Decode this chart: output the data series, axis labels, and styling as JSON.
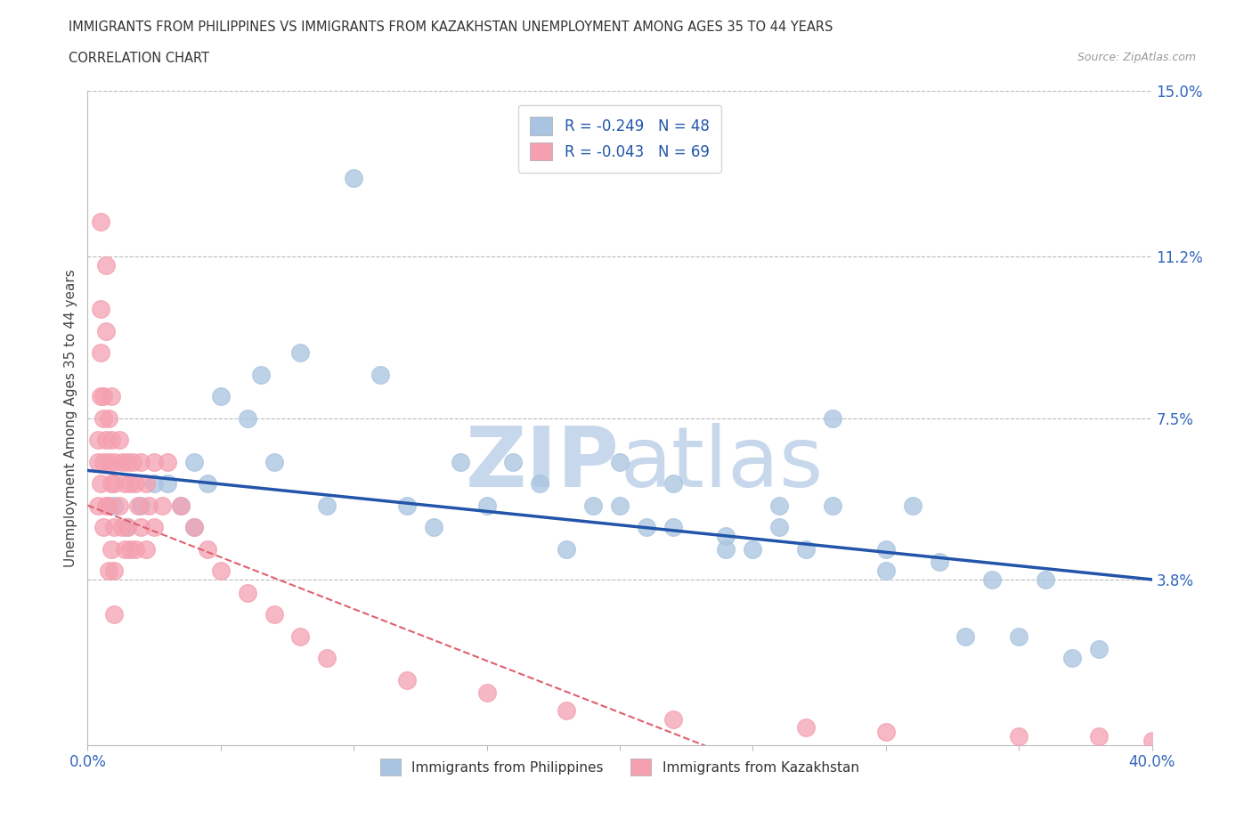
{
  "title_line1": "IMMIGRANTS FROM PHILIPPINES VS IMMIGRANTS FROM KAZAKHSTAN UNEMPLOYMENT AMONG AGES 35 TO 44 YEARS",
  "title_line2": "CORRELATION CHART",
  "source_text": "Source: ZipAtlas.com",
  "ylabel": "Unemployment Among Ages 35 to 44 years",
  "xlim": [
    0.0,
    0.4
  ],
  "ylim": [
    0.0,
    0.15
  ],
  "ytick_vals": [
    0.038,
    0.075,
    0.112,
    0.15
  ],
  "ytick_labels": [
    "3.8%",
    "7.5%",
    "11.2%",
    "15.0%"
  ],
  "philippines_R": -0.249,
  "philippines_N": 48,
  "kazakhstan_R": -0.043,
  "kazakhstan_N": 69,
  "philippines_color": "#A8C4E0",
  "kazakhstan_color": "#F4A0B0",
  "philippines_line_color": "#2255AA",
  "kazakhstan_line_color": "#E06070",
  "background_color": "#FFFFFF",
  "watermark_color": "#D8E4F0",
  "watermark_text": "ZIPatlas",
  "philippines_x": [
    0.01,
    0.015,
    0.02,
    0.025,
    0.03,
    0.035,
    0.04,
    0.04,
    0.045,
    0.05,
    0.06,
    0.065,
    0.07,
    0.08,
    0.09,
    0.1,
    0.11,
    0.12,
    0.13,
    0.14,
    0.15,
    0.16,
    0.17,
    0.18,
    0.19,
    0.2,
    0.21,
    0.22,
    0.24,
    0.25,
    0.26,
    0.27,
    0.28,
    0.3,
    0.31,
    0.32,
    0.33,
    0.34,
    0.35,
    0.36,
    0.37,
    0.38,
    0.2,
    0.22,
    0.24,
    0.26,
    0.28,
    0.3
  ],
  "philippines_y": [
    0.055,
    0.05,
    0.055,
    0.06,
    0.06,
    0.055,
    0.065,
    0.05,
    0.06,
    0.08,
    0.075,
    0.085,
    0.065,
    0.09,
    0.055,
    0.13,
    0.085,
    0.055,
    0.05,
    0.065,
    0.055,
    0.065,
    0.06,
    0.045,
    0.055,
    0.055,
    0.05,
    0.05,
    0.048,
    0.045,
    0.055,
    0.045,
    0.075,
    0.04,
    0.055,
    0.042,
    0.025,
    0.038,
    0.025,
    0.038,
    0.02,
    0.022,
    0.065,
    0.06,
    0.045,
    0.05,
    0.055,
    0.045
  ],
  "kazakhstan_x": [
    0.004,
    0.004,
    0.004,
    0.005,
    0.005,
    0.005,
    0.005,
    0.005,
    0.006,
    0.006,
    0.006,
    0.006,
    0.007,
    0.007,
    0.007,
    0.007,
    0.008,
    0.008,
    0.008,
    0.008,
    0.009,
    0.009,
    0.009,
    0.009,
    0.01,
    0.01,
    0.01,
    0.01,
    0.01,
    0.012,
    0.012,
    0.013,
    0.013,
    0.014,
    0.014,
    0.015,
    0.015,
    0.016,
    0.016,
    0.017,
    0.018,
    0.018,
    0.019,
    0.02,
    0.02,
    0.022,
    0.022,
    0.023,
    0.025,
    0.025,
    0.028,
    0.03,
    0.035,
    0.04,
    0.045,
    0.05,
    0.06,
    0.07,
    0.08,
    0.09,
    0.12,
    0.15,
    0.18,
    0.22,
    0.27,
    0.3,
    0.35,
    0.38,
    0.4
  ],
  "kazakhstan_y": [
    0.07,
    0.065,
    0.055,
    0.12,
    0.1,
    0.09,
    0.08,
    0.06,
    0.08,
    0.075,
    0.065,
    0.05,
    0.11,
    0.095,
    0.07,
    0.055,
    0.075,
    0.065,
    0.055,
    0.04,
    0.08,
    0.07,
    0.06,
    0.045,
    0.065,
    0.06,
    0.05,
    0.04,
    0.03,
    0.07,
    0.055,
    0.065,
    0.05,
    0.06,
    0.045,
    0.065,
    0.05,
    0.06,
    0.045,
    0.065,
    0.06,
    0.045,
    0.055,
    0.065,
    0.05,
    0.06,
    0.045,
    0.055,
    0.065,
    0.05,
    0.055,
    0.065,
    0.055,
    0.05,
    0.045,
    0.04,
    0.035,
    0.03,
    0.025,
    0.02,
    0.015,
    0.012,
    0.008,
    0.006,
    0.004,
    0.003,
    0.002,
    0.002,
    0.001
  ]
}
